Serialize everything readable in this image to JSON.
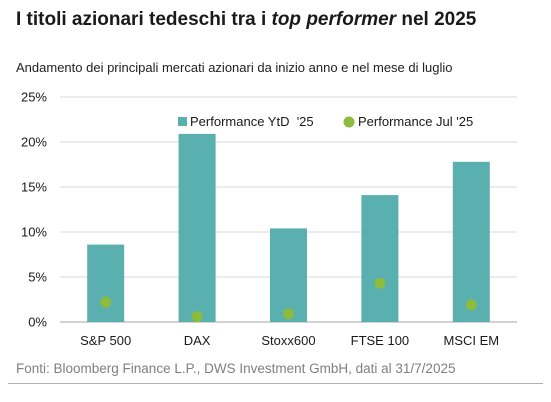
{
  "header": {
    "title_pre": "I titoli azionari tedeschi tra i ",
    "title_em": "top performer",
    "title_post": " nel 2025",
    "subtitle": "Andamento dei principali mercati azionari da inizio anno e nel mese di luglio"
  },
  "footer": {
    "source": "Fonti: Bloomberg Finance L.P., DWS Investment GmbH, dati al 31/7/2025"
  },
  "colors": {
    "bar": "#5aafaf",
    "dot": "#8dbb3e",
    "grid": "#d9d9d9",
    "axis": "#a6a6a6"
  },
  "chart_data": {
    "type": "bar",
    "categories": [
      "S&P 500",
      "DAX",
      "Stoxx600",
      "FTSE 100",
      "MSCI EM"
    ],
    "series": [
      {
        "name": "Performance YtD  '25",
        "type": "bar",
        "values": [
          8.6,
          20.9,
          10.4,
          14.1,
          17.8
        ]
      },
      {
        "name": "Performance Jul '25",
        "type": "scatter",
        "values": [
          2.2,
          0.6,
          0.9,
          4.3,
          1.9
        ]
      }
    ],
    "ylim": [
      0,
      25
    ],
    "yticks": [
      0,
      5,
      10,
      15,
      20,
      25
    ],
    "ytick_labels": [
      "0%",
      "5%",
      "10%",
      "15%",
      "20%",
      "25%"
    ],
    "grid": true,
    "legend": "top-right"
  }
}
